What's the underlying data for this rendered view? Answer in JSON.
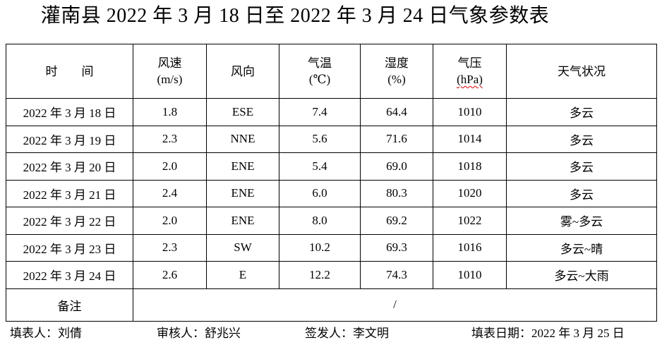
{
  "title": "灌南县 2022 年 3 月 18 日至 2022 年 3 月 24 日气象参数表",
  "table": {
    "headers": [
      {
        "line1": "时　　间",
        "line2": ""
      },
      {
        "line1": "风速",
        "line2": "(m/s)"
      },
      {
        "line1": "风向",
        "line2": ""
      },
      {
        "line1": "气温",
        "line2": "(℃)"
      },
      {
        "line1": "湿度",
        "line2": "(%)"
      },
      {
        "line1": "气压",
        "line2": "(hPa)",
        "misspelled": true
      },
      {
        "line1": "天气状况",
        "line2": ""
      }
    ],
    "columns_semantic": [
      "date",
      "wind-speed",
      "wind-direction",
      "temperature",
      "humidity",
      "pressure",
      "weather-condition"
    ],
    "rows": [
      [
        "2022 年 3 月 18 日",
        "1.8",
        "ESE",
        "7.4",
        "64.4",
        "1010",
        "多云"
      ],
      [
        "2022 年 3 月 19 日",
        "2.3",
        "NNE",
        "5.6",
        "71.6",
        "1014",
        "多云"
      ],
      [
        "2022 年 3 月 20 日",
        "2.0",
        "ENE",
        "5.4",
        "69.0",
        "1018",
        "多云"
      ],
      [
        "2022 年 3 月 21 日",
        "2.4",
        "ENE",
        "6.0",
        "80.3",
        "1020",
        "多云"
      ],
      [
        "2022 年 3 月 22 日",
        "2.0",
        "ENE",
        "8.0",
        "69.2",
        "1022",
        "雾~多云"
      ],
      [
        "2022 年 3 月 23 日",
        "2.3",
        "SW",
        "10.2",
        "69.3",
        "1016",
        "多云~晴"
      ],
      [
        "2022 年 3 月 24 日",
        "2.6",
        "E",
        "12.2",
        "74.3",
        "1010",
        "多云~大雨"
      ]
    ],
    "remark_label": "备注",
    "remark_value": "/"
  },
  "footer": {
    "filler": "填表人：刘倩",
    "reviewer": "审核人：舒兆兴",
    "issuer": "签发人：李文明",
    "date": "填表日期：2022 年 3 月 25 日"
  },
  "colors": {
    "text": "#000000",
    "border": "#000000",
    "background": "#ffffff",
    "spellcheck_underline": "#dd0000"
  }
}
